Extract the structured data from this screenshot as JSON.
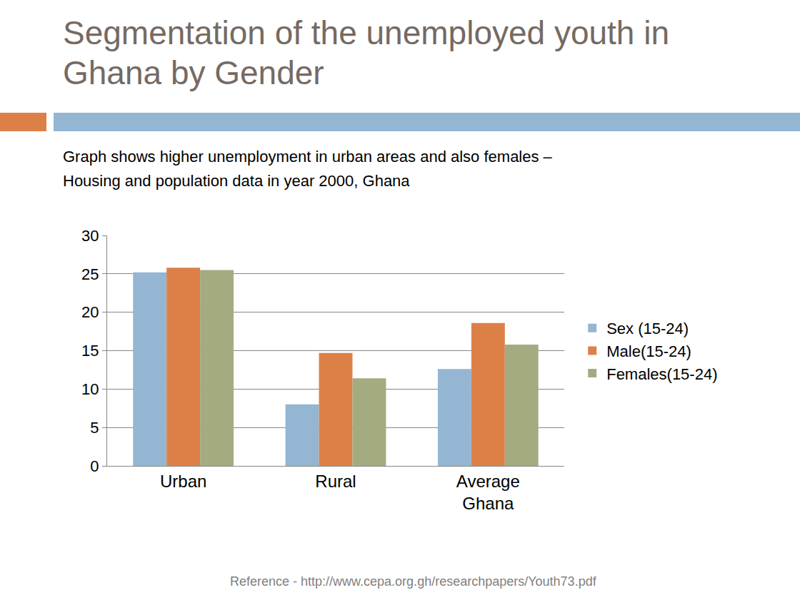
{
  "chart_data": {
    "type": "bar",
    "title": "Segmentation of the unemployed youth in Ghana by Gender",
    "subtitle": [
      "Graph shows higher unemployment in urban areas and also females –",
      "Housing and population data in year 2000, Ghana"
    ],
    "annotations": [
      "Reference - http://www.cepa.org.gh/researchpapers/Youth73.pdf"
    ],
    "categories": [
      "Urban",
      "Rural",
      "Average Ghana"
    ],
    "series": [
      {
        "name": "Sex (15-24)",
        "color": "#94b6d2",
        "values": [
          25.2,
          8.0,
          12.6
        ]
      },
      {
        "name": "Male(15-24)",
        "color": "#dd8047",
        "values": [
          25.8,
          14.7,
          18.6
        ]
      },
      {
        "name": "Females(15-24)",
        "color": "#a5ab81",
        "values": [
          25.5,
          11.4,
          15.8
        ]
      }
    ],
    "ylim": [
      0,
      30
    ],
    "yticks": [
      0,
      5,
      10,
      15,
      20,
      25,
      30
    ],
    "grid": true,
    "legend": "right"
  }
}
